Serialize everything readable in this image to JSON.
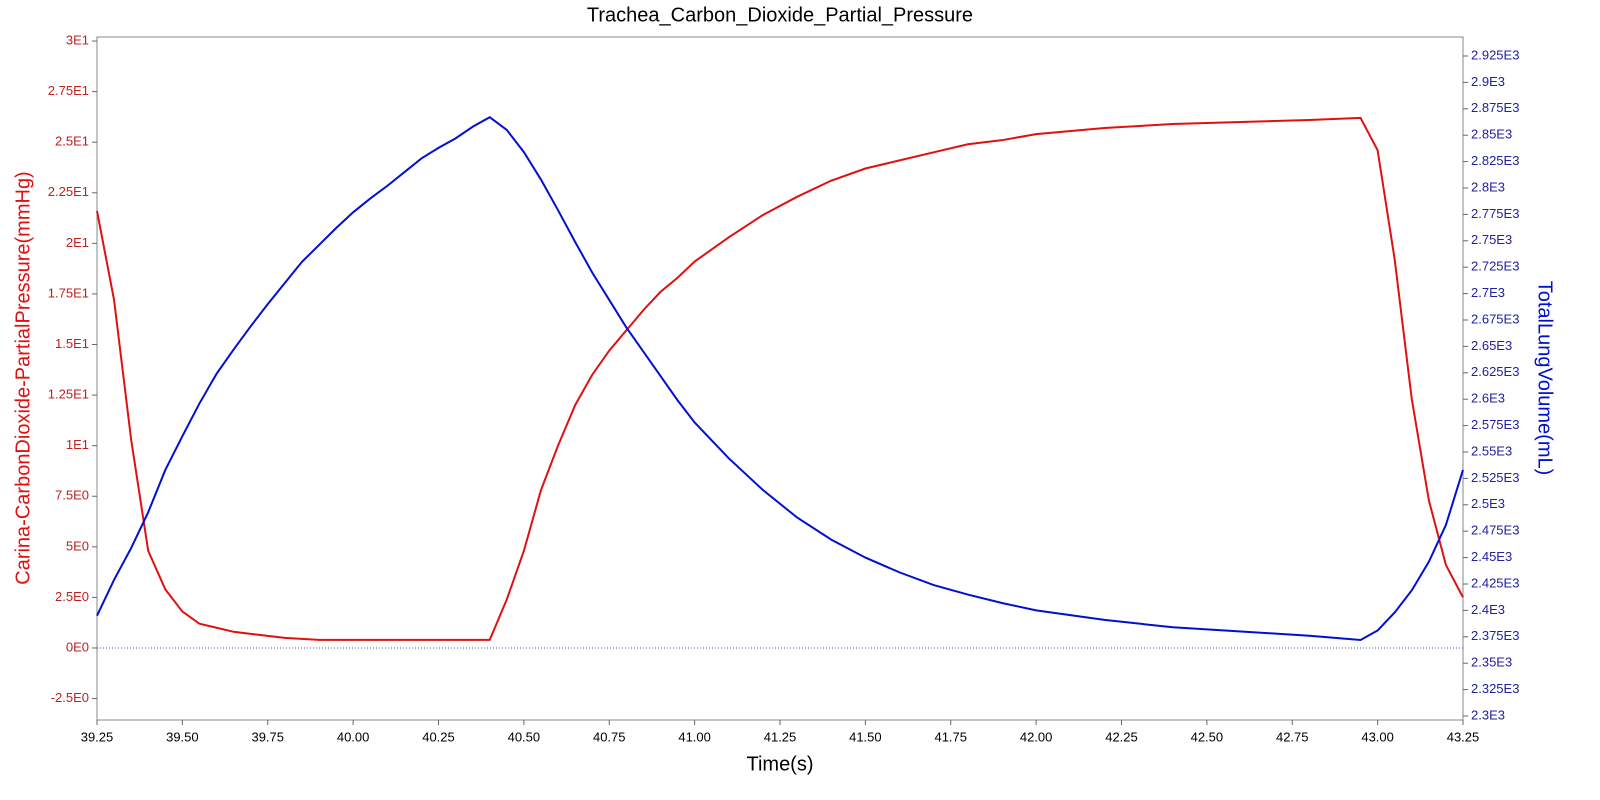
{
  "chart_data": {
    "type": "line",
    "title": "Trachea_Carbon_Dioxide_Partial_Pressure",
    "x_label": "Time(s)",
    "y_label": "Carina-CarbonDioxide-PartialPressure(mmHg)",
    "y2_label": "TotalLungVolume(mL)",
    "x": [
      39.25,
      39.3,
      39.35,
      39.4,
      39.45,
      39.5,
      39.55,
      39.6,
      39.65,
      39.7,
      39.75,
      39.8,
      39.85,
      39.9,
      39.95,
      40,
      40.05,
      40.1,
      40.15,
      40.2,
      40.25,
      40.3,
      40.35,
      40.4,
      40.45,
      40.5,
      40.55,
      40.6,
      40.65,
      40.7,
      40.75,
      40.8,
      40.85,
      40.9,
      40.95,
      41,
      41.1,
      41.2,
      41.3,
      41.4,
      41.5,
      41.6,
      41.7,
      41.8,
      41.9,
      42,
      42.2,
      42.4,
      42.6,
      42.8,
      42.95,
      43,
      43.05,
      43.1,
      43.15,
      43.2,
      43.25
    ],
    "series": [
      {
        "name": "Carina-CarbonDioxide-PartialPressure(mmHg)",
        "color": "#e01010",
        "axis": "y",
        "values": [
          21.6,
          17.2,
          10.3,
          4.8,
          2.9,
          1.8,
          1.2,
          1.0,
          0.8,
          0.7,
          0.6,
          0.5,
          0.45,
          0.4,
          0.4,
          0.4,
          0.4,
          0.4,
          0.4,
          0.4,
          0.4,
          0.4,
          0.4,
          0.4,
          2.4,
          4.8,
          7.8,
          10,
          12,
          13.5,
          14.7,
          15.7,
          16.7,
          17.6,
          18.3,
          19.1,
          20.3,
          21.4,
          22.3,
          23.1,
          23.7,
          24.1,
          24.5,
          24.9,
          25.1,
          25.4,
          25.7,
          25.9,
          26.0,
          26.1,
          26.2,
          24.6,
          19.2,
          12.3,
          7.3,
          4.1,
          2.5
        ]
      },
      {
        "name": "TotalLungVolume(mL)",
        "color": "#0010d0",
        "axis": "y2",
        "values": [
          2395,
          2429,
          2459,
          2493,
          2533,
          2565,
          2596,
          2624,
          2647,
          2669,
          2690,
          2710,
          2730,
          2746,
          2762,
          2777,
          2790,
          2802,
          2815,
          2828,
          2838,
          2847,
          2858,
          2867,
          2855,
          2834,
          2808,
          2779,
          2749,
          2720,
          2694,
          2668,
          2645,
          2622,
          2599,
          2578,
          2544,
          2514,
          2488,
          2467,
          2450,
          2436,
          2424,
          2415,
          2407,
          2400,
          2391,
          2384,
          2380,
          2376,
          2372,
          2381,
          2398,
          2419,
          2446,
          2481,
          2533
        ]
      }
    ],
    "xlim": [
      39.25,
      43.25
    ],
    "xticks": [
      39.25,
      {
        "value": 39.5,
        "label": "39.50"
      },
      39.75,
      {
        "value": 40,
        "label": "40.00"
      },
      40.25,
      {
        "value": 40.5,
        "label": "40.50"
      },
      40.75,
      {
        "value": 41,
        "label": "41.00"
      },
      41.25,
      {
        "value": 41.5,
        "label": "41.50"
      },
      41.75,
      {
        "value": 42,
        "label": "42.00"
      },
      42.25,
      {
        "value": 42.5,
        "label": "42.50"
      },
      42.75,
      {
        "value": 43,
        "label": "43.00"
      },
      43.25
    ],
    "ylim": [
      -3.56,
      30.2
    ],
    "yticks": [
      {
        "value": 30,
        "label": "3E1"
      },
      {
        "value": 27.5,
        "label": "2.75E1"
      },
      {
        "value": 25,
        "label": "2.5E1"
      },
      {
        "value": 22.5,
        "label": "2.25E1"
      },
      {
        "value": 20,
        "label": "2E1"
      },
      {
        "value": 17.5,
        "label": "1.75E1"
      },
      {
        "value": 15,
        "label": "1.5E1"
      },
      {
        "value": 12.5,
        "label": "1.25E1"
      },
      {
        "value": 10,
        "label": "1E1"
      },
      {
        "value": 7.5,
        "label": "7.5E0"
      },
      {
        "value": 5,
        "label": "5E0"
      },
      {
        "value": 2.5,
        "label": "2.5E0"
      },
      {
        "value": 0,
        "label": "0E0"
      },
      {
        "value": -2.5,
        "label": "-2.5E0"
      }
    ],
    "y2lim": [
      2296.2,
      2943
    ],
    "y2ticks": [
      {
        "value": 2300,
        "label": "2.3E3"
      },
      {
        "value": 2325,
        "label": "2.325E3"
      },
      {
        "value": 2350,
        "label": "2.35E3"
      },
      {
        "value": 2375,
        "label": "2.375E3"
      },
      {
        "value": 2400,
        "label": "2.4E3"
      },
      {
        "value": 2425,
        "label": "2.425E3"
      },
      {
        "value": 2450,
        "label": "2.45E3"
      },
      {
        "value": 2475,
        "label": "2.475E3"
      },
      {
        "value": 2500,
        "label": "2.5E3"
      },
      {
        "value": 2525,
        "label": "2.525E3"
      },
      {
        "value": 2550,
        "label": "2.55E3"
      },
      {
        "value": 2575,
        "label": "2.575E3"
      },
      {
        "value": 2600,
        "label": "2.6E3"
      },
      {
        "value": 2625,
        "label": "2.625E3"
      },
      {
        "value": 2650,
        "label": "2.65E3"
      },
      {
        "value": 2675,
        "label": "2.675E3"
      },
      {
        "value": 2700,
        "label": "2.7E3"
      },
      {
        "value": 2725,
        "label": "2.725E3"
      },
      {
        "value": 2750,
        "label": "2.75E3"
      },
      {
        "value": 2775,
        "label": "2.775E3"
      },
      {
        "value": 2800,
        "label": "2.8E3"
      },
      {
        "value": 2825,
        "label": "2.825E3"
      },
      {
        "value": 2850,
        "label": "2.85E3"
      },
      {
        "value": 2875,
        "label": "2.875E3"
      },
      {
        "value": 2900,
        "label": "2.9E3"
      },
      {
        "value": 2925,
        "label": "2.925E3"
      }
    ],
    "y_color": "#c02020",
    "y2_color": "#2020a0",
    "grid": false
  }
}
